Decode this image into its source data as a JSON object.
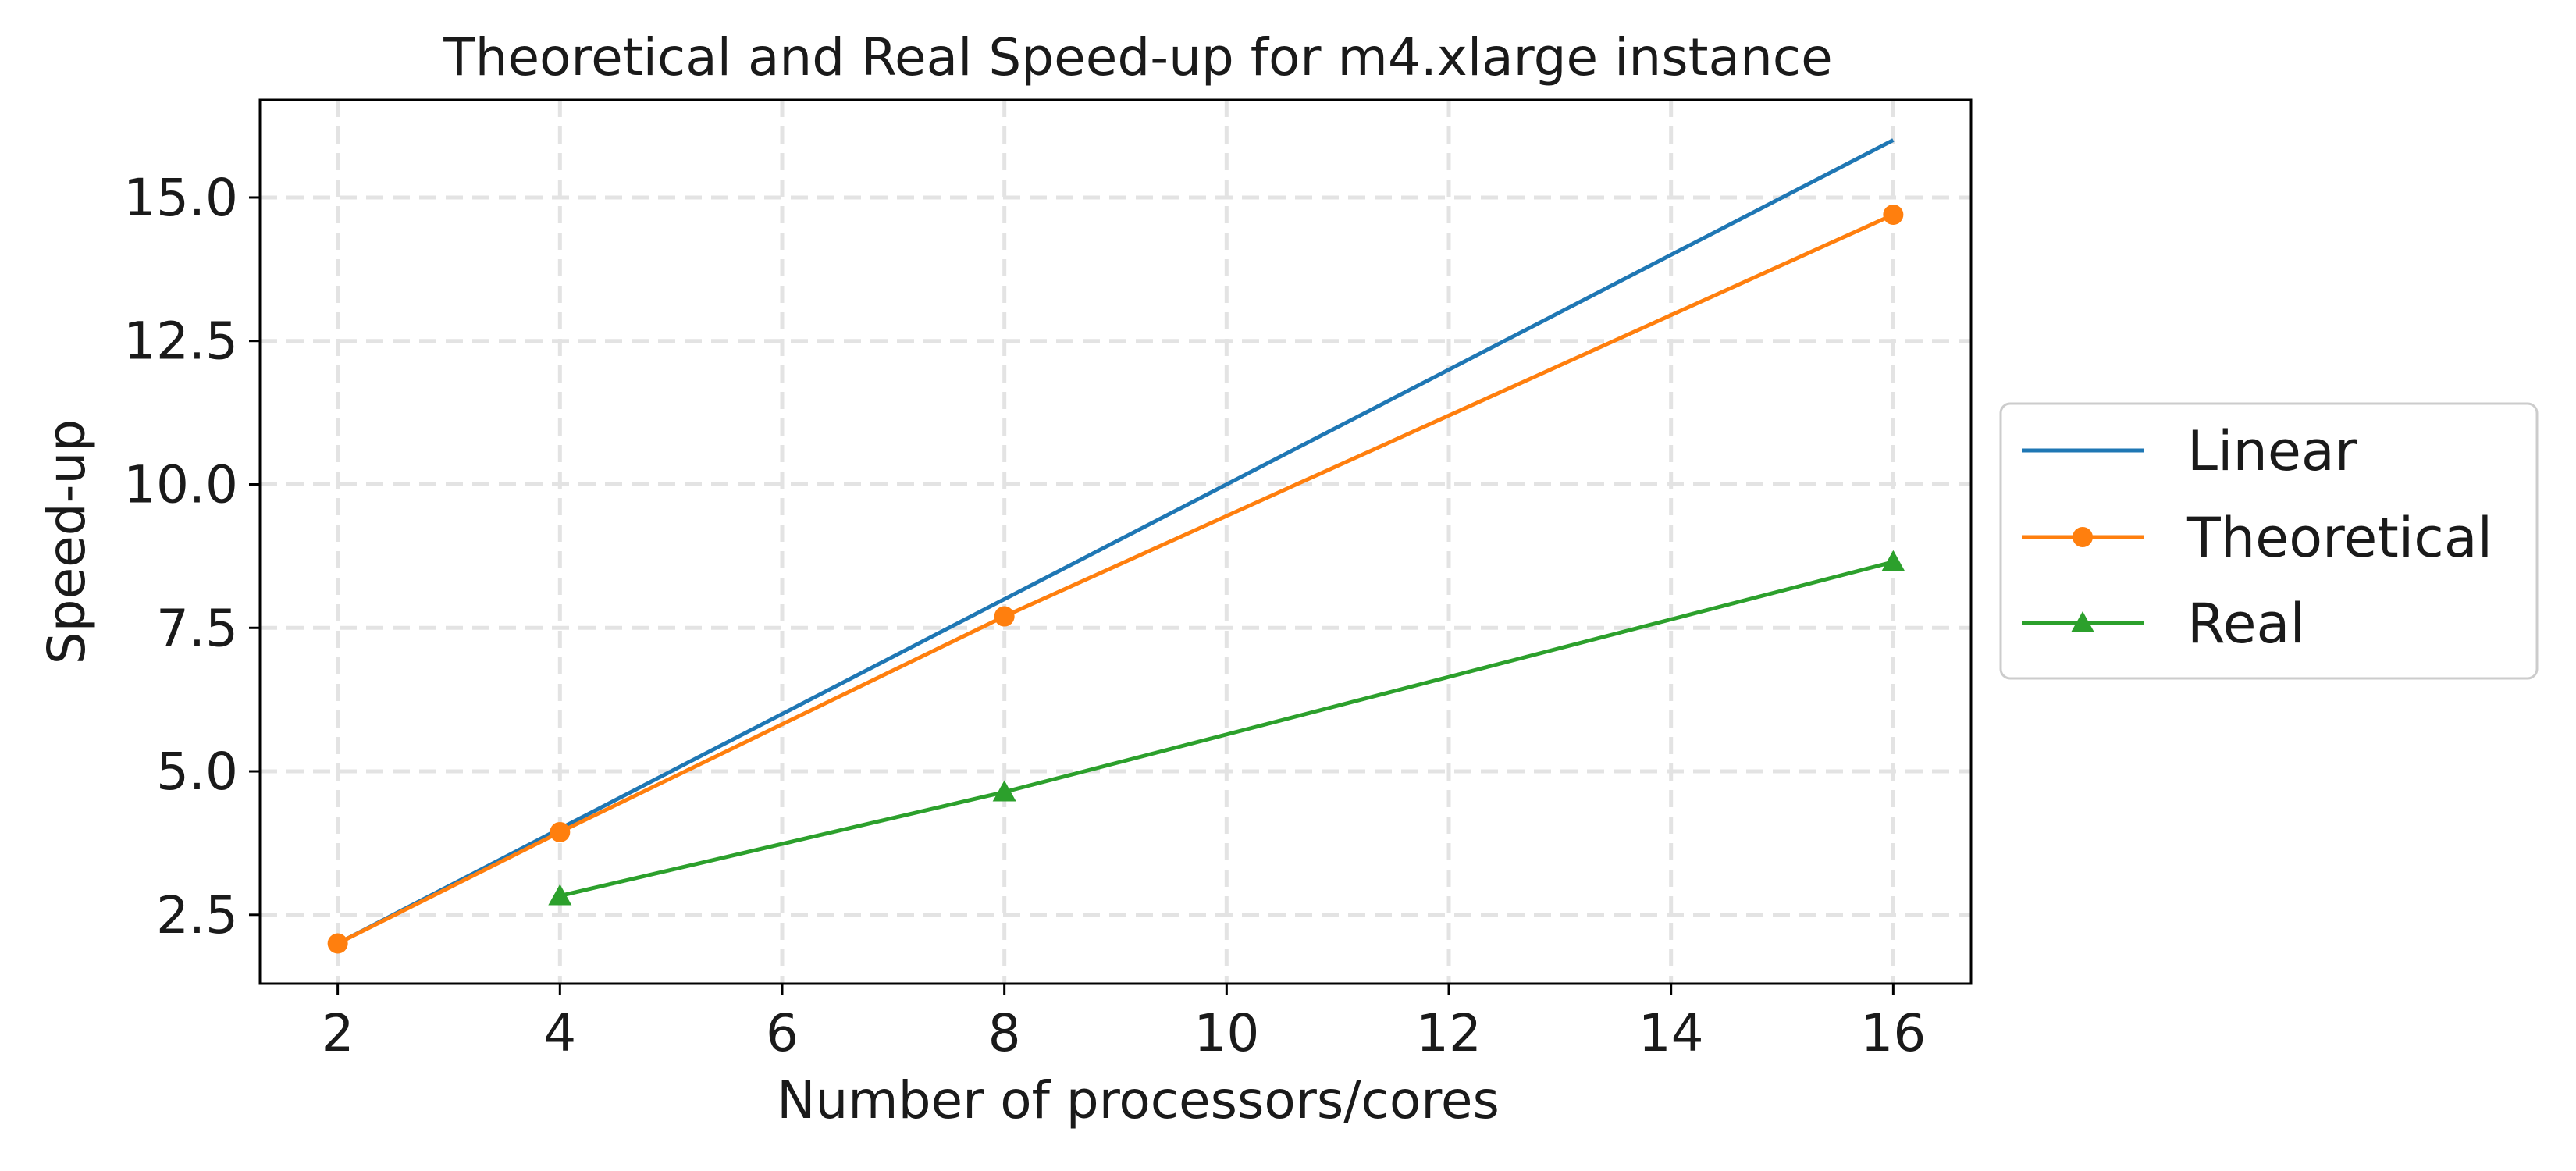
{
  "chart_data": {
    "type": "line",
    "title": "Theoretical and Real Speed-up for m4.xlarge instance",
    "xlabel": "Number of processors/cores",
    "ylabel": "Speed-up",
    "xlim": [
      1.3,
      16.7
    ],
    "ylim": [
      1.3,
      16.7
    ],
    "xticks": [
      2,
      4,
      6,
      8,
      10,
      12,
      14,
      16
    ],
    "yticks": [
      2.5,
      5.0,
      7.5,
      10.0,
      12.5,
      15.0
    ],
    "ytick_labels": [
      "2.5",
      "5.0",
      "7.5",
      "10.0",
      "12.5",
      "15.0"
    ],
    "grid": true,
    "legend_position": "outside-right",
    "series": [
      {
        "name": "Linear",
        "color": "#1f77b4",
        "marker": "none",
        "x": [
          2,
          4,
          8,
          16
        ],
        "y": [
          2.0,
          4.0,
          8.0,
          16.0
        ]
      },
      {
        "name": "Theoretical",
        "color": "#ff7f0e",
        "marker": "circle",
        "x": [
          2,
          4,
          8,
          16
        ],
        "y": [
          2.0,
          3.94,
          7.7,
          14.7
        ]
      },
      {
        "name": "Real",
        "color": "#2ca02c",
        "marker": "triangle",
        "x": [
          4,
          8,
          16
        ],
        "y": [
          2.83,
          4.64,
          8.65
        ]
      }
    ]
  }
}
